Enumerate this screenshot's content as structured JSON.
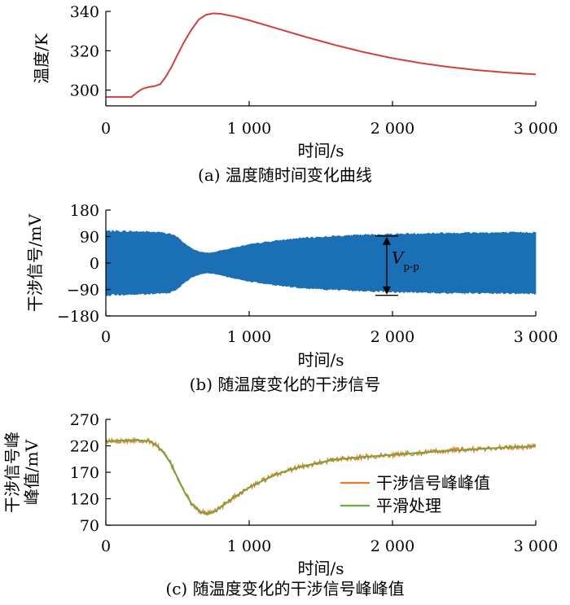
{
  "chart_data": [
    {
      "id": "a",
      "type": "line",
      "caption": "(a)  温度随时间变化曲线",
      "xlabel": "时间/s",
      "ylabel": "温度/K",
      "xlim": [
        0,
        3000
      ],
      "ylim": [
        292,
        340
      ],
      "xticks": [
        0,
        1000,
        2000,
        3000
      ],
      "xtick_labels": [
        "0",
        "1 000",
        "2 000",
        "3 000"
      ],
      "yticks": [
        300,
        320,
        340
      ],
      "ytick_labels": [
        "300",
        "320",
        "340"
      ],
      "grid": false,
      "series": [
        {
          "color": "#d23f3f",
          "x": [
            0,
            100,
            180,
            220,
            260,
            300,
            340,
            380,
            420,
            460,
            500,
            550,
            600,
            650,
            700,
            750,
            800,
            900,
            1000,
            1200,
            1400,
            1600,
            1800,
            2000,
            2200,
            2400,
            2600,
            2800,
            3000
          ],
          "y": [
            296.5,
            296.5,
            296.5,
            299,
            300.8,
            301.6,
            302,
            303,
            307,
            312,
            318,
            325,
            331,
            336,
            338.3,
            339,
            338.8,
            337.4,
            335.5,
            331.2,
            326.9,
            322.9,
            319.3,
            316.2,
            313.7,
            311.7,
            310.1,
            308.9,
            308
          ]
        }
      ]
    },
    {
      "id": "b",
      "type": "area",
      "caption": "(b)  随温度变化的干涉信号",
      "xlabel": "时间/s",
      "ylabel": "干涉信号/mV",
      "xlim": [
        0,
        3000
      ],
      "ylim": [
        -180,
        180
      ],
      "xticks": [
        0,
        1000,
        2000,
        3000
      ],
      "xtick_labels": [
        "0",
        "1 000",
        "2 000",
        "3 000"
      ],
      "yticks": [
        -180,
        -90,
        0,
        90,
        180
      ],
      "ytick_labels": [
        "−180",
        "−90",
        "0",
        "90",
        "180"
      ],
      "grid": false,
      "series": [
        {
          "color": "#1a6fb5",
          "x": [
            0,
            100,
            200,
            300,
            400,
            450,
            500,
            550,
            600,
            650,
            700,
            750,
            800,
            900,
            1000,
            1100,
            1200,
            1300,
            1400,
            1600,
            1800,
            2000,
            2200,
            2400,
            2600,
            2800,
            3000
          ],
          "amplitude": [
            112,
            111,
            110,
            109,
            106,
            102,
            90,
            68,
            50,
            40,
            35,
            37,
            43,
            54,
            64,
            72,
            78,
            84,
            88,
            94,
            98,
            101,
            103,
            105,
            106,
            106,
            107
          ]
        }
      ],
      "annotation": {
        "label": "V",
        "subscript": "p-p",
        "x": 1960,
        "y_top": 92,
        "y_bottom": -110
      }
    },
    {
      "id": "c",
      "type": "line",
      "caption": "(c)  随温度变化的干涉信号峰峰值",
      "xlabel": "时间/s",
      "ylabel_lines": [
        "干涉信号峰",
        "峰值/mV"
      ],
      "xlim": [
        0,
        3000
      ],
      "ylim": [
        70,
        270
      ],
      "xticks": [
        0,
        1000,
        2000,
        3000
      ],
      "xtick_labels": [
        "0",
        "1 000",
        "2 000",
        "3 000"
      ],
      "yticks": [
        70,
        120,
        170,
        220,
        270
      ],
      "ytick_labels": [
        "70",
        "120",
        "170",
        "220",
        "270"
      ],
      "grid": false,
      "legend": "bottom-right",
      "x": [
        0,
        100,
        200,
        300,
        350,
        400,
        450,
        500,
        550,
        600,
        650,
        700,
        750,
        800,
        900,
        1000,
        1100,
        1200,
        1300,
        1400,
        1500,
        1600,
        1800,
        2000,
        2200,
        2400,
        2600,
        2800,
        3000
      ],
      "series": [
        {
          "name": "干涉信号峰峰值",
          "color": "#f07828",
          "y": [
            228,
            230,
            231,
            229,
            222,
            208,
            188,
            160,
            132,
            110,
            97,
            91,
            94,
            104,
            124,
            141,
            155,
            167,
            176,
            183,
            189,
            194,
            199,
            203,
            207,
            211,
            214,
            217,
            219
          ]
        },
        {
          "name": "平滑处理",
          "color": "#6aaa40",
          "y": [
            228,
            230,
            231,
            229,
            222,
            208,
            188,
            160,
            132,
            110,
            97,
            91,
            94,
            104,
            124,
            141,
            155,
            167,
            176,
            183,
            189,
            194,
            199,
            203,
            207,
            211,
            214,
            217,
            219
          ]
        }
      ]
    }
  ]
}
